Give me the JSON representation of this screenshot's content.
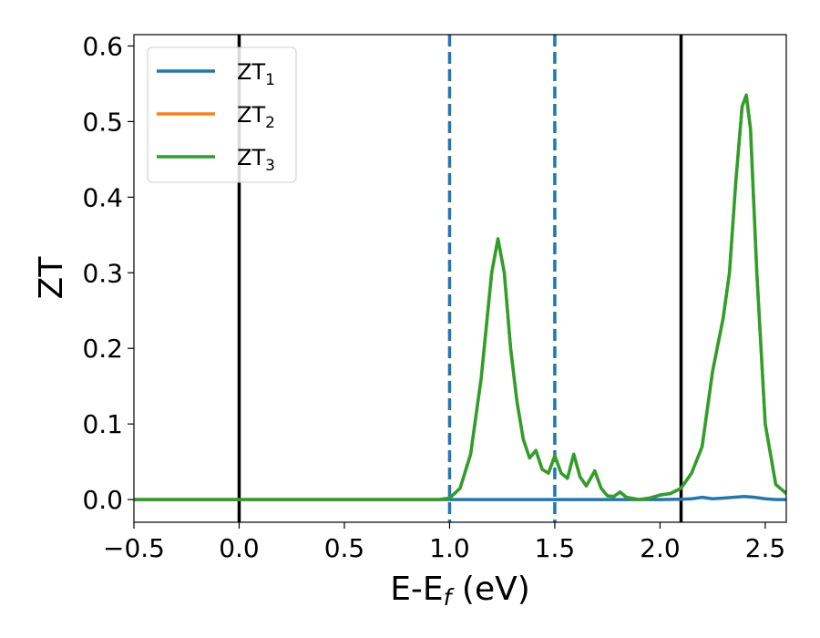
{
  "chart_data": {
    "type": "line",
    "xlabel": {
      "main": "E-E",
      "sub": "f",
      "suffix": " (eV)"
    },
    "ylabel": "ZT",
    "xlim": [
      -0.5,
      2.6
    ],
    "ylim": [
      -0.03,
      0.615
    ],
    "xticks": [
      -0.5,
      0.0,
      0.5,
      1.0,
      1.5,
      2.0,
      2.5
    ],
    "xtick_labels": [
      "−0.5",
      "0.0",
      "0.5",
      "1.0",
      "1.5",
      "2.0",
      "2.5"
    ],
    "yticks": [
      0.0,
      0.1,
      0.2,
      0.3,
      0.4,
      0.5,
      0.6
    ],
    "ytick_labels": [
      "0.0",
      "0.1",
      "0.2",
      "0.3",
      "0.4",
      "0.5",
      "0.6"
    ],
    "legend_position": "top-left",
    "grid": false,
    "reference_lines": [
      {
        "x": 0.0,
        "style": "solid",
        "color": "#000000"
      },
      {
        "x": 2.1,
        "style": "solid",
        "color": "#000000"
      },
      {
        "x": 1.0,
        "style": "dashed",
        "color": "#1f77b4"
      },
      {
        "x": 1.5,
        "style": "dashed",
        "color": "#1f77b4"
      }
    ],
    "series": [
      {
        "name": "ZT",
        "sub": "1",
        "color": "#1f77b4",
        "x": [
          -0.5,
          0.0,
          0.5,
          1.0,
          1.5,
          2.0,
          2.1,
          2.15,
          2.2,
          2.25,
          2.3,
          2.35,
          2.4,
          2.45,
          2.5,
          2.55,
          2.6
        ],
        "y": [
          0,
          0,
          0,
          0,
          0,
          0,
          0.0005,
          0.001,
          0.003,
          0.001,
          0.002,
          0.003,
          0.004,
          0.003,
          0.001,
          0.0,
          0.0
        ]
      },
      {
        "name": "ZT",
        "sub": "2",
        "color": "#ff7f0e",
        "x": [
          -0.5,
          0.0,
          0.5,
          0.95,
          1.0,
          1.05,
          1.1,
          1.15,
          1.2,
          1.23,
          1.26,
          1.29,
          1.32,
          1.35,
          1.38,
          1.41,
          1.44,
          1.47,
          1.5,
          1.53,
          1.56,
          1.59,
          1.62,
          1.65,
          1.69,
          1.72,
          1.75,
          1.78,
          1.81,
          1.84,
          1.9,
          1.95,
          2.0,
          2.05,
          2.1,
          2.15,
          2.2,
          2.25,
          2.3,
          2.33,
          2.36,
          2.39,
          2.41,
          2.43,
          2.46,
          2.5,
          2.55,
          2.6
        ],
        "y": [
          0,
          0,
          0,
          0.0,
          0.002,
          0.015,
          0.06,
          0.16,
          0.3,
          0.345,
          0.3,
          0.2,
          0.13,
          0.08,
          0.055,
          0.065,
          0.04,
          0.035,
          0.058,
          0.035,
          0.028,
          0.06,
          0.03,
          0.018,
          0.038,
          0.015,
          0.005,
          0.004,
          0.01,
          0.003,
          0.0,
          0.002,
          0.006,
          0.008,
          0.015,
          0.035,
          0.07,
          0.17,
          0.24,
          0.3,
          0.42,
          0.52,
          0.535,
          0.49,
          0.3,
          0.1,
          0.02,
          0.008
        ]
      },
      {
        "name": "ZT",
        "sub": "3",
        "color": "#2ca02c",
        "x": [
          -0.5,
          0.0,
          0.5,
          0.95,
          1.0,
          1.05,
          1.1,
          1.15,
          1.2,
          1.23,
          1.26,
          1.29,
          1.32,
          1.35,
          1.38,
          1.41,
          1.44,
          1.47,
          1.5,
          1.53,
          1.56,
          1.59,
          1.62,
          1.65,
          1.69,
          1.72,
          1.75,
          1.78,
          1.81,
          1.84,
          1.9,
          1.95,
          2.0,
          2.05,
          2.1,
          2.15,
          2.2,
          2.25,
          2.3,
          2.33,
          2.36,
          2.39,
          2.41,
          2.43,
          2.46,
          2.5,
          2.55,
          2.6
        ],
        "y": [
          0,
          0,
          0,
          0.0,
          0.002,
          0.015,
          0.06,
          0.16,
          0.3,
          0.345,
          0.3,
          0.2,
          0.13,
          0.08,
          0.055,
          0.065,
          0.04,
          0.035,
          0.058,
          0.035,
          0.028,
          0.06,
          0.03,
          0.018,
          0.038,
          0.015,
          0.005,
          0.004,
          0.01,
          0.003,
          0.0,
          0.002,
          0.006,
          0.008,
          0.015,
          0.035,
          0.07,
          0.17,
          0.24,
          0.3,
          0.42,
          0.52,
          0.535,
          0.49,
          0.3,
          0.1,
          0.02,
          0.008
        ]
      }
    ]
  }
}
